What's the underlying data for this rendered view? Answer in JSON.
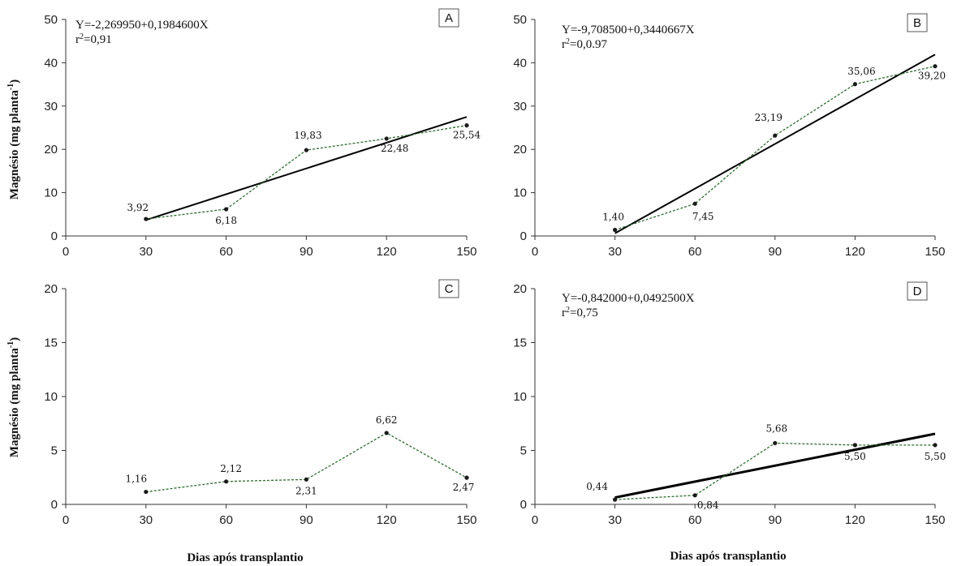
{
  "ylabel": "Magnésio (mg planta-1)",
  "ylabel_main": "Magnésio (mg planta",
  "ylabel_sup": "-1",
  "ylabel_close": ")",
  "xlabel": "Dias após transplantio",
  "chart_data": [
    {
      "type": "line",
      "panel_label": "A",
      "x": [
        30,
        60,
        90,
        120,
        150
      ],
      "values": [
        3.92,
        6.18,
        19.83,
        22.48,
        25.54
      ],
      "value_labels": [
        "3,92",
        "6,18",
        "19,83",
        "22,48",
        "25,54"
      ],
      "xlim": [
        0,
        150
      ],
      "ylim": [
        0,
        50
      ],
      "x_ticks": [
        "0",
        "30",
        "60",
        "90",
        "120",
        "150"
      ],
      "y_ticks": [
        "0",
        "10",
        "20",
        "30",
        "40",
        "50"
      ],
      "equation": "Y=-2,269950+0,1984600X",
      "r2_label": "r",
      "r2_sup": "2",
      "r2_value": "=0,91",
      "regression": {
        "intercept": -2.26995,
        "slope": 0.19846
      },
      "marker_color": "#1a1a1a",
      "data_line_color": "#2e6b2e",
      "fit_color": "#000000"
    },
    {
      "type": "line",
      "panel_label": "B",
      "x": [
        30,
        60,
        90,
        120,
        150
      ],
      "values": [
        1.4,
        7.45,
        23.19,
        35.06,
        39.2
      ],
      "value_labels": [
        "1,40",
        "7,45",
        "23,19",
        "35,06",
        "39,20"
      ],
      "xlim": [
        0,
        150
      ],
      "ylim": [
        0,
        50
      ],
      "x_ticks": [
        "0",
        "30",
        "60",
        "90",
        "120",
        "150"
      ],
      "y_ticks": [
        "0",
        "10",
        "20",
        "30",
        "40",
        "50"
      ],
      "equation": "Y=-9,708500+0,3440667X",
      "r2_label": "r",
      "r2_sup": "2",
      "r2_value": "=0,0.97",
      "regression": {
        "intercept": -9.7085,
        "slope": 0.3440667
      },
      "marker_color": "#1a1a1a",
      "data_line_color": "#2e6b2e",
      "fit_color": "#000000"
    },
    {
      "type": "line",
      "panel_label": "C",
      "x": [
        30,
        60,
        90,
        120,
        150
      ],
      "values": [
        1.16,
        2.12,
        2.31,
        6.62,
        2.47
      ],
      "value_labels": [
        "1,16",
        "2,12",
        "2,31",
        "6,62",
        "2,47"
      ],
      "xlim": [
        0,
        150
      ],
      "ylim": [
        0,
        20
      ],
      "x_ticks": [
        "0",
        "30",
        "60",
        "90",
        "120",
        "150"
      ],
      "y_ticks": [
        "0",
        "5",
        "10",
        "15",
        "20"
      ],
      "equation": "",
      "r2_label": "",
      "r2_sup": "",
      "r2_value": "",
      "regression": null,
      "marker_color": "#1a1a1a",
      "data_line_color": "#2e6b2e",
      "fit_color": "#000000"
    },
    {
      "type": "line",
      "panel_label": "D",
      "x": [
        30,
        60,
        90,
        120,
        150
      ],
      "values": [
        0.44,
        0.84,
        5.68,
        5.5,
        5.5
      ],
      "value_labels": [
        "0,44",
        "0,84",
        "5,68",
        "5,50",
        "5,50"
      ],
      "xlim": [
        0,
        150
      ],
      "ylim": [
        0,
        20
      ],
      "x_ticks": [
        "0",
        "30",
        "60",
        "90",
        "120",
        "150"
      ],
      "y_ticks": [
        "0",
        "5",
        "10",
        "15",
        "20"
      ],
      "equation": "Y=-0,842000+0,0492500X",
      "r2_label": "r",
      "r2_sup": "2",
      "r2_value": "=0,75",
      "regression": {
        "intercept": -0.842,
        "slope": 0.04925
      },
      "marker_color": "#1a1a1a",
      "data_line_color": "#2e6b2e",
      "fit_color": "#000000"
    }
  ]
}
